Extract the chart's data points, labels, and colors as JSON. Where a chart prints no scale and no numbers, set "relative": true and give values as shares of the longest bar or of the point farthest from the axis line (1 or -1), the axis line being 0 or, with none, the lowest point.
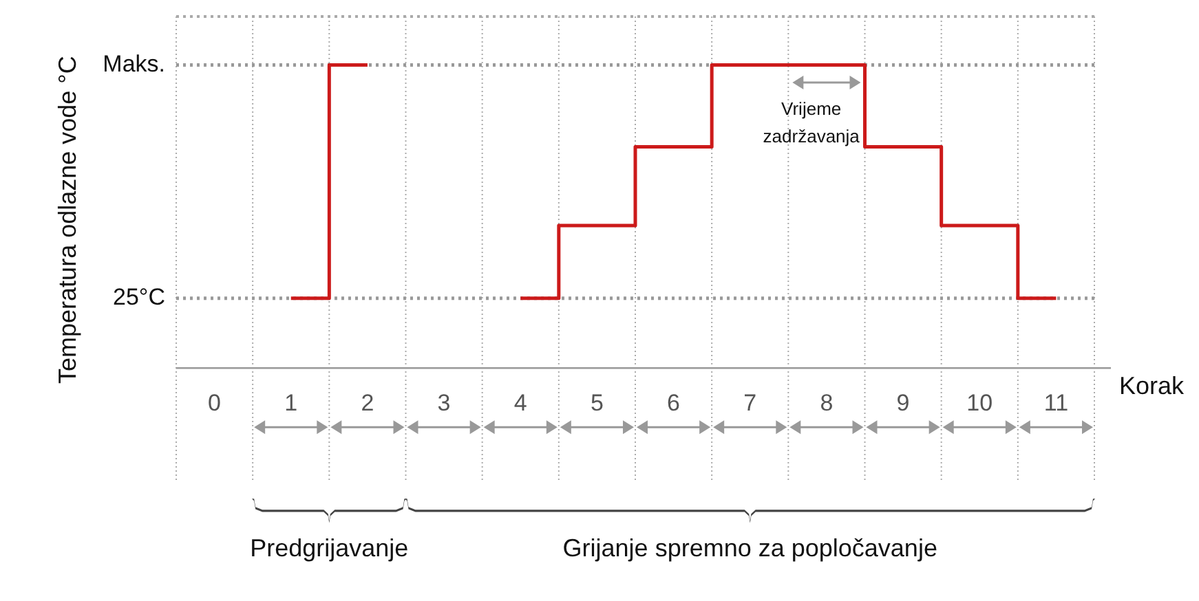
{
  "chart_data": {
    "type": "step",
    "relative": true,
    "xlabel": "Korak",
    "ylabel": "Temperatura odlazne vode °C",
    "categories": [
      "0",
      "1",
      "2",
      "3",
      "4",
      "5",
      "6",
      "7",
      "8",
      "9",
      "10",
      "11"
    ],
    "series": [
      {
        "color": "#cc1a1a",
        "values": [
          null,
          0.23,
          1,
          null,
          0.23,
          0.47,
          0.73,
          1,
          1,
          0.73,
          0.47,
          0.23
        ]
      }
    ],
    "ref_lines": [
      {
        "axis": "y",
        "value": 0.23,
        "label": "25°C",
        "color": "#999999",
        "line_style": "dotted"
      },
      {
        "axis": "y",
        "value": 1,
        "label": "Maks.",
        "color": "#999999",
        "line_style": "dotted"
      }
    ],
    "annotations": [
      "Vrijeme zadržavanja",
      "Predgrijavanje",
      "Grijanje spremno za popločavanje"
    ],
    "grid": "x",
    "legend": false
  }
}
